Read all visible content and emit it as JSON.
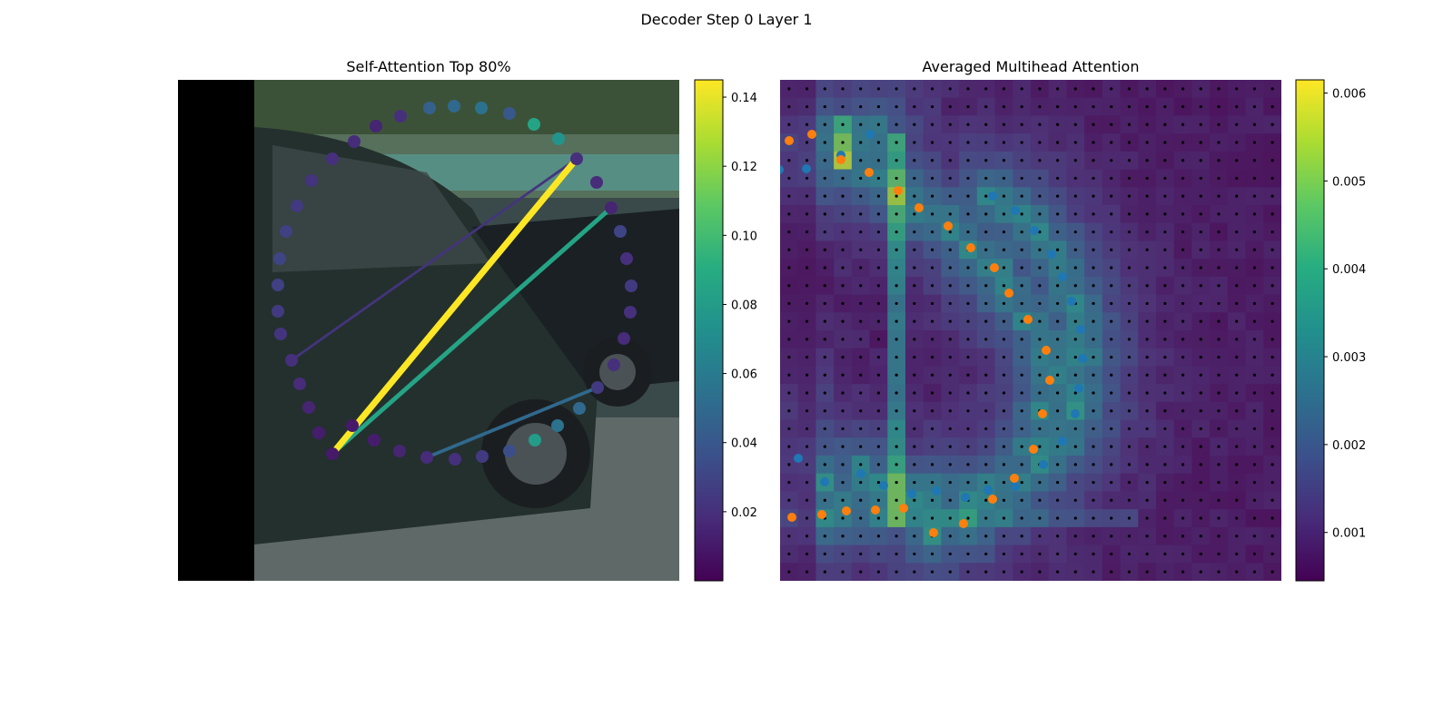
{
  "suptitle": "Decoder Step 0 Layer 1",
  "panels": {
    "left_title": "Self-Attention Top 80%",
    "right_title": "Averaged Multihead Attention"
  },
  "colors": {
    "viridis": [
      "#440154",
      "#472c7a",
      "#3b518b",
      "#2c718e",
      "#21908d",
      "#27ad81",
      "#5cc863",
      "#aadc32",
      "#fde725"
    ],
    "blue_points": "#1f77b4",
    "orange_points": "#ff7f0e",
    "grid_dots": "#000000"
  },
  "chart_data": [
    {
      "type": "scatter",
      "title": "Self-Attention Top 80%",
      "description_of_background": "camera image of a dark car",
      "colorbar": {
        "range": [
          0.0,
          0.145
        ],
        "ticks": [
          0.02,
          0.04,
          0.06,
          0.08,
          0.1,
          0.12,
          0.14
        ],
        "tick_labels": [
          "0.02",
          "0.04",
          "0.06",
          "0.08",
          "0.10",
          "0.12",
          "0.14"
        ]
      },
      "points": [
        {
          "x": 31,
          "y": 178,
          "v": 0.01
        },
        {
          "x": 16,
          "y": 155,
          "v": 0.012
        },
        {
          "x": 5,
          "y": 127,
          "v": 0.015
        },
        {
          "x": -5,
          "y": 101,
          "v": 0.018
        },
        {
          "x": -14,
          "y": 75,
          "v": 0.02
        },
        {
          "x": -26,
          "y": 46,
          "v": 0.022
        },
        {
          "x": -29,
          "y": 21,
          "v": 0.025
        },
        {
          "x": -29,
          "y": -8,
          "v": 0.028
        },
        {
          "x": -27,
          "y": -37,
          "v": 0.03
        },
        {
          "x": -20,
          "y": -67,
          "v": 0.028
        },
        {
          "x": -8,
          "y": -95,
          "v": 0.025
        },
        {
          "x": 8,
          "y": -123,
          "v": 0.022
        },
        {
          "x": 31,
          "y": -147,
          "v": 0.02
        },
        {
          "x": 55,
          "y": -166,
          "v": 0.018
        },
        {
          "x": 79,
          "y": -183,
          "v": 0.015
        },
        {
          "x": 106,
          "y": -194,
          "v": 0.02
        },
        {
          "x": 138,
          "y": -203,
          "v": 0.045
        },
        {
          "x": 165,
          "y": -205,
          "v": 0.05
        },
        {
          "x": 195,
          "y": -203,
          "v": 0.055
        },
        {
          "x": 226,
          "y": -197,
          "v": 0.04
        },
        {
          "x": 253,
          "y": -185,
          "v": 0.085
        },
        {
          "x": 280,
          "y": -169,
          "v": 0.075
        },
        {
          "x": 300,
          "y": -147,
          "v": 0.02
        },
        {
          "x": 322,
          "y": -121,
          "v": 0.018
        },
        {
          "x": 338,
          "y": -93,
          "v": 0.015
        },
        {
          "x": 348,
          "y": -67,
          "v": 0.03
        },
        {
          "x": 355,
          "y": -37,
          "v": 0.02
        },
        {
          "x": 360,
          "y": -7,
          "v": 0.025
        },
        {
          "x": 359,
          "y": 22,
          "v": 0.02
        },
        {
          "x": 352,
          "y": 51,
          "v": 0.018
        },
        {
          "x": 341,
          "y": 80,
          "v": 0.02
        },
        {
          "x": 323,
          "y": 105,
          "v": 0.025
        },
        {
          "x": 303,
          "y": 128,
          "v": 0.05
        },
        {
          "x": 279,
          "y": 147,
          "v": 0.055
        },
        {
          "x": 254,
          "y": 163,
          "v": 0.08
        },
        {
          "x": 226,
          "y": 175,
          "v": 0.035
        },
        {
          "x": 196,
          "y": 181,
          "v": 0.025
        },
        {
          "x": 166,
          "y": 184,
          "v": 0.02
        },
        {
          "x": 135,
          "y": 182,
          "v": 0.018
        },
        {
          "x": 105,
          "y": 175,
          "v": 0.015
        },
        {
          "x": 77,
          "y": 163,
          "v": 0.012
        },
        {
          "x": 53,
          "y": 147,
          "v": 0.01
        }
      ],
      "links": [
        {
          "from": 0,
          "to": 22,
          "w": 0.145
        },
        {
          "from": 0,
          "to": 24,
          "w": 0.085
        },
        {
          "from": 38,
          "to": 31,
          "w": 0.05
        },
        {
          "from": 4,
          "to": 22,
          "w": 0.022
        }
      ]
    },
    {
      "type": "heatmap",
      "title": "Averaged Multihead Attention",
      "grid": {
        "rows": 28,
        "cols": 28
      },
      "colorbar": {
        "range": [
          0.00045,
          0.00615
        ],
        "ticks": [
          0.001,
          0.002,
          0.003,
          0.004,
          0.005,
          0.006
        ],
        "tick_labels": [
          "0.001",
          "0.002",
          "0.003",
          "0.004",
          "0.005",
          "0.006"
        ]
      },
      "blue_points": [
        [
          175,
          148
        ],
        [
          143,
          171
        ],
        [
          105,
          186
        ],
        [
          75,
          187
        ],
        [
          54,
          190
        ],
        [
          36,
          190
        ],
        [
          13,
          192
        ],
        [
          -8,
          198
        ],
        [
          -24,
          207
        ],
        [
          -32,
          216
        ],
        [
          -41,
          229
        ],
        [
          -46,
          243
        ],
        [
          -49,
          258
        ],
        [
          -53,
          277
        ],
        [
          -45,
          291
        ],
        [
          -52,
          319
        ],
        [
          -48,
          342
        ],
        [
          -37,
          363
        ],
        [
          -27,
          382
        ],
        [
          -10,
          398
        ],
        [
          9,
          414
        ],
        [
          42,
          426
        ],
        [
          70,
          452
        ],
        [
          96,
          505
        ],
        [
          125,
          531
        ],
        [
          165,
          522
        ],
        [
          190,
          535
        ],
        [
          221,
          544
        ],
        [
          248,
          541
        ],
        [
          280,
          548
        ],
        [
          305,
          540
        ],
        [
          335,
          536
        ],
        [
          366,
          512
        ],
        [
          387,
          486
        ],
        [
          401,
          456
        ],
        [
          405,
          428
        ],
        [
          409,
          395
        ],
        [
          407,
          363
        ],
        [
          397,
          332
        ],
        [
          387,
          305
        ],
        [
          375,
          280
        ],
        [
          356,
          254
        ],
        [
          335,
          232
        ],
        [
          310,
          216
        ]
      ],
      "orange_points": [
        [
          111,
          148
        ],
        [
          86,
          155
        ],
        [
          52,
          169
        ],
        [
          21,
          176
        ],
        [
          -6,
          182
        ],
        [
          -29,
          196
        ],
        [
          -30,
          205
        ],
        [
          -32,
          235
        ],
        [
          -28,
          266
        ],
        [
          -27,
          297
        ],
        [
          -30,
          318
        ],
        [
          -29,
          345
        ],
        [
          -27,
          371
        ],
        [
          -27,
          394
        ],
        [
          -29,
          420
        ],
        [
          -24,
          447
        ],
        [
          -23,
          474
        ],
        [
          -18,
          520
        ],
        [
          -13,
          545
        ],
        [
          -7,
          566
        ],
        [
          15,
          581
        ],
        [
          53,
          578
        ],
        [
          89,
          570
        ],
        [
          122,
          567
        ],
        [
          149,
          563
        ],
        [
          181,
          562
        ],
        [
          212,
          560
        ],
        [
          245,
          587
        ],
        [
          278,
          577
        ],
        [
          310,
          550
        ],
        [
          334,
          527
        ],
        [
          355,
          495
        ],
        [
          365,
          456
        ],
        [
          373,
          419
        ],
        [
          369,
          386
        ],
        [
          349,
          352
        ],
        [
          328,
          323
        ],
        [
          312,
          295
        ],
        [
          286,
          273
        ],
        [
          261,
          249
        ],
        [
          229,
          229
        ],
        [
          206,
          210
        ],
        [
          174,
          190
        ],
        [
          143,
          176
        ]
      ]
    }
  ]
}
